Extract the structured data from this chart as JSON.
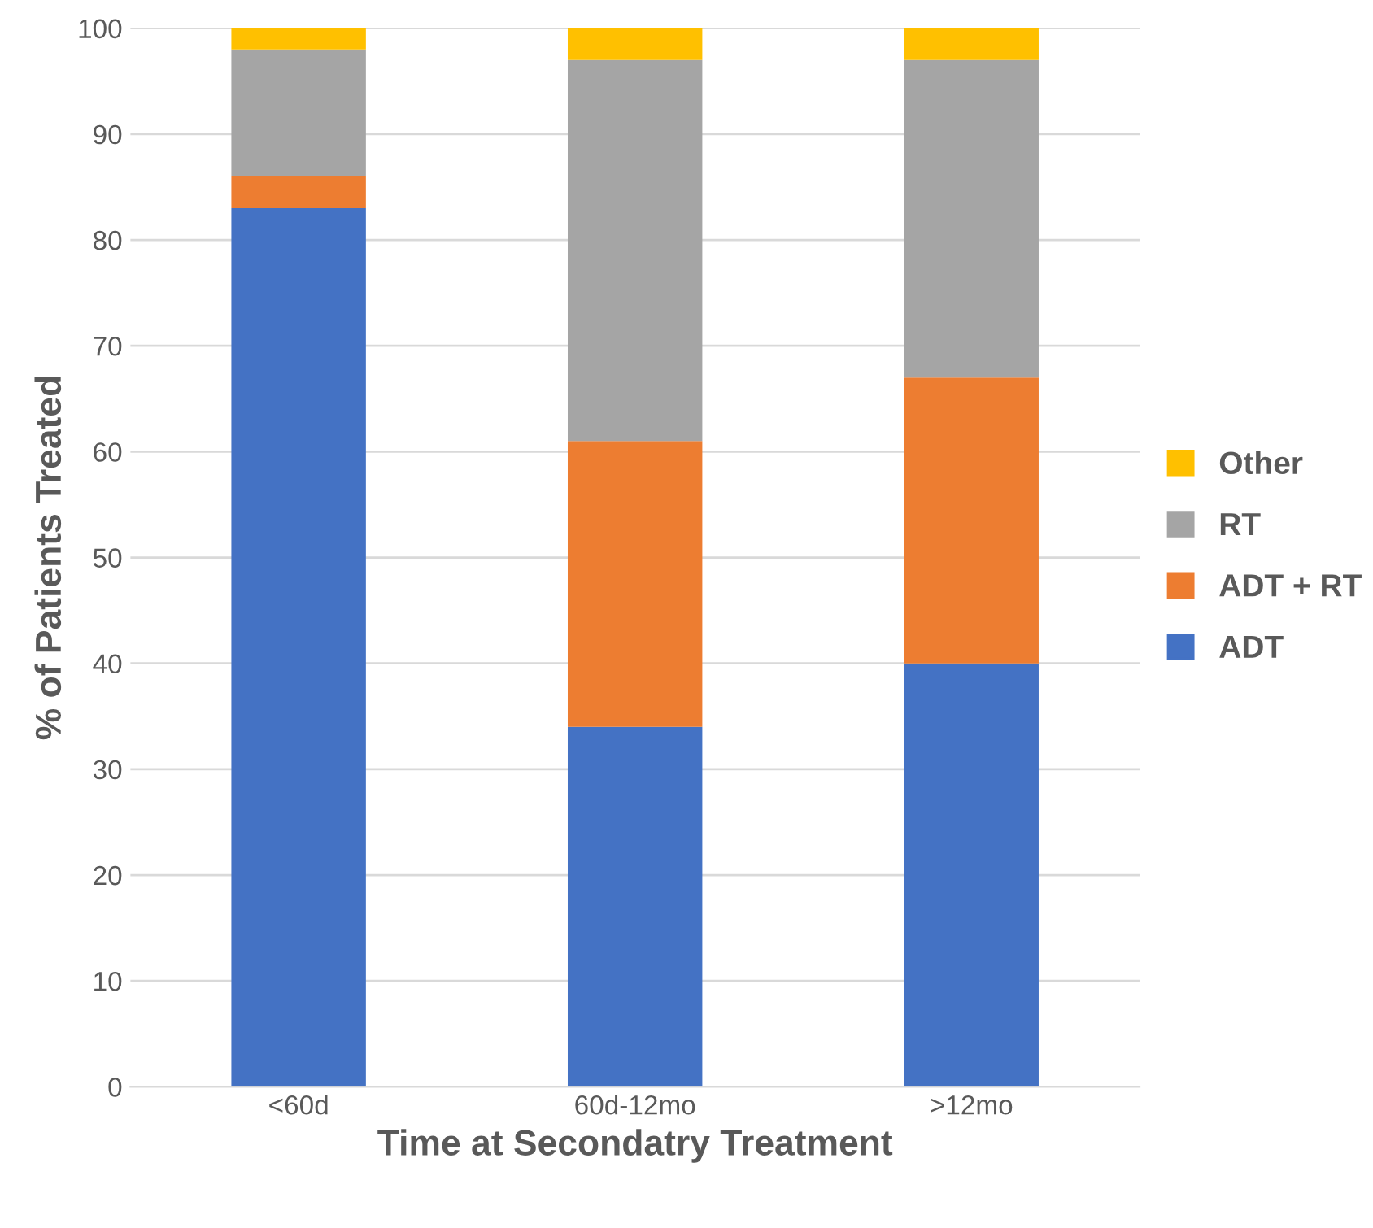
{
  "chart_data": {
    "type": "bar",
    "stacked": true,
    "xlabel": "Time at Secondatry Treatment",
    "ylabel": "% of Patients Treated",
    "categories": [
      "<60d",
      "60d-12mo",
      ">12mo"
    ],
    "series": [
      {
        "name": "ADT",
        "color": "#4472c4",
        "values": [
          83,
          34,
          40
        ]
      },
      {
        "name": "ADT + RT",
        "color": "#ed7d31",
        "values": [
          3,
          27,
          27
        ]
      },
      {
        "name": "RT",
        "color": "#a5a5a5",
        "values": [
          12,
          36,
          30
        ]
      },
      {
        "name": "Other",
        "color": "#ffc000",
        "values": [
          2,
          3,
          3
        ]
      }
    ],
    "ylim": [
      0,
      100
    ],
    "yticks": [
      0,
      10,
      20,
      30,
      40,
      50,
      60,
      70,
      80,
      90,
      100
    ],
    "grid": "y",
    "legend": "right"
  }
}
